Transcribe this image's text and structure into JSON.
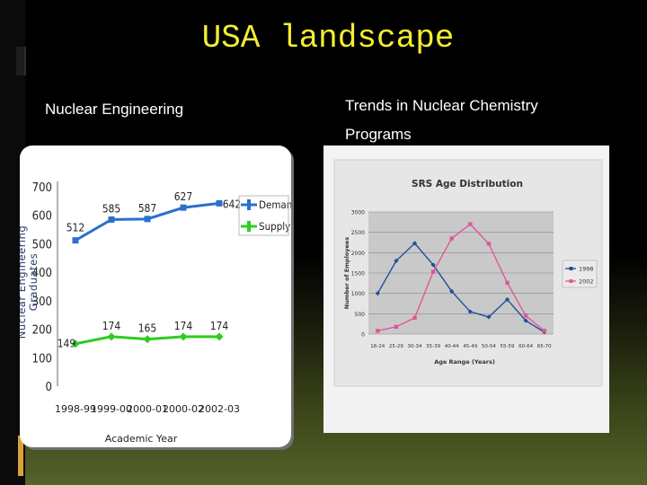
{
  "slide": {
    "title": "USA landscape",
    "left_subtitle": "Nuclear Engineering",
    "right_subtitle": "Trends in Nuclear Chemistry Programs"
  },
  "colors": {
    "title": "#f3ee2e",
    "demand": "#2b6fd0",
    "supply": "#2ecc1f",
    "series_1998": "#1f4e9a",
    "series_2002": "#e0559a"
  },
  "chart_data": [
    {
      "type": "line",
      "title": "",
      "xlabel": "Academic Year",
      "ylabel": "Nuclear Engineering Graduates",
      "categories": [
        "1998-99",
        "1999-00",
        "2000-01",
        "2000-02",
        "2002-03"
      ],
      "yticks": [
        "0",
        "100",
        "200",
        "300",
        "400",
        "500",
        "600",
        "700"
      ],
      "ylim": [
        0,
        700
      ],
      "grid": false,
      "legend_position": "right",
      "series": [
        {
          "name": "Demand",
          "values": [
            512,
            585,
            587,
            627,
            642
          ],
          "labels": [
            "512",
            "585",
            "587",
            "627",
            "642"
          ]
        },
        {
          "name": "Supply",
          "values": [
            149,
            174,
            165,
            174,
            174
          ],
          "labels": [
            "149",
            "174",
            "165",
            "174",
            "174"
          ]
        }
      ]
    },
    {
      "type": "line",
      "title": "SRS Age Distribution",
      "xlabel": "Age Range (Years)",
      "ylabel": "Number of Employees",
      "categories": [
        "16-24",
        "25-29",
        "30-34",
        "35-39",
        "40-44",
        "45-49",
        "50-54",
        "55-59",
        "60-64",
        "65-70"
      ],
      "yticks": [
        "0",
        "500",
        "1000",
        "1500",
        "2000",
        "2500",
        "3000"
      ],
      "ylim": [
        0,
        3000
      ],
      "grid": true,
      "legend_position": "right",
      "series": [
        {
          "name": "1998",
          "values": [
            1000,
            1800,
            2230,
            1700,
            1050,
            550,
            420,
            850,
            330,
            50
          ]
        },
        {
          "name": "2002",
          "values": [
            80,
            180,
            400,
            1530,
            2350,
            2700,
            2220,
            1260,
            450,
            80
          ]
        }
      ]
    }
  ]
}
